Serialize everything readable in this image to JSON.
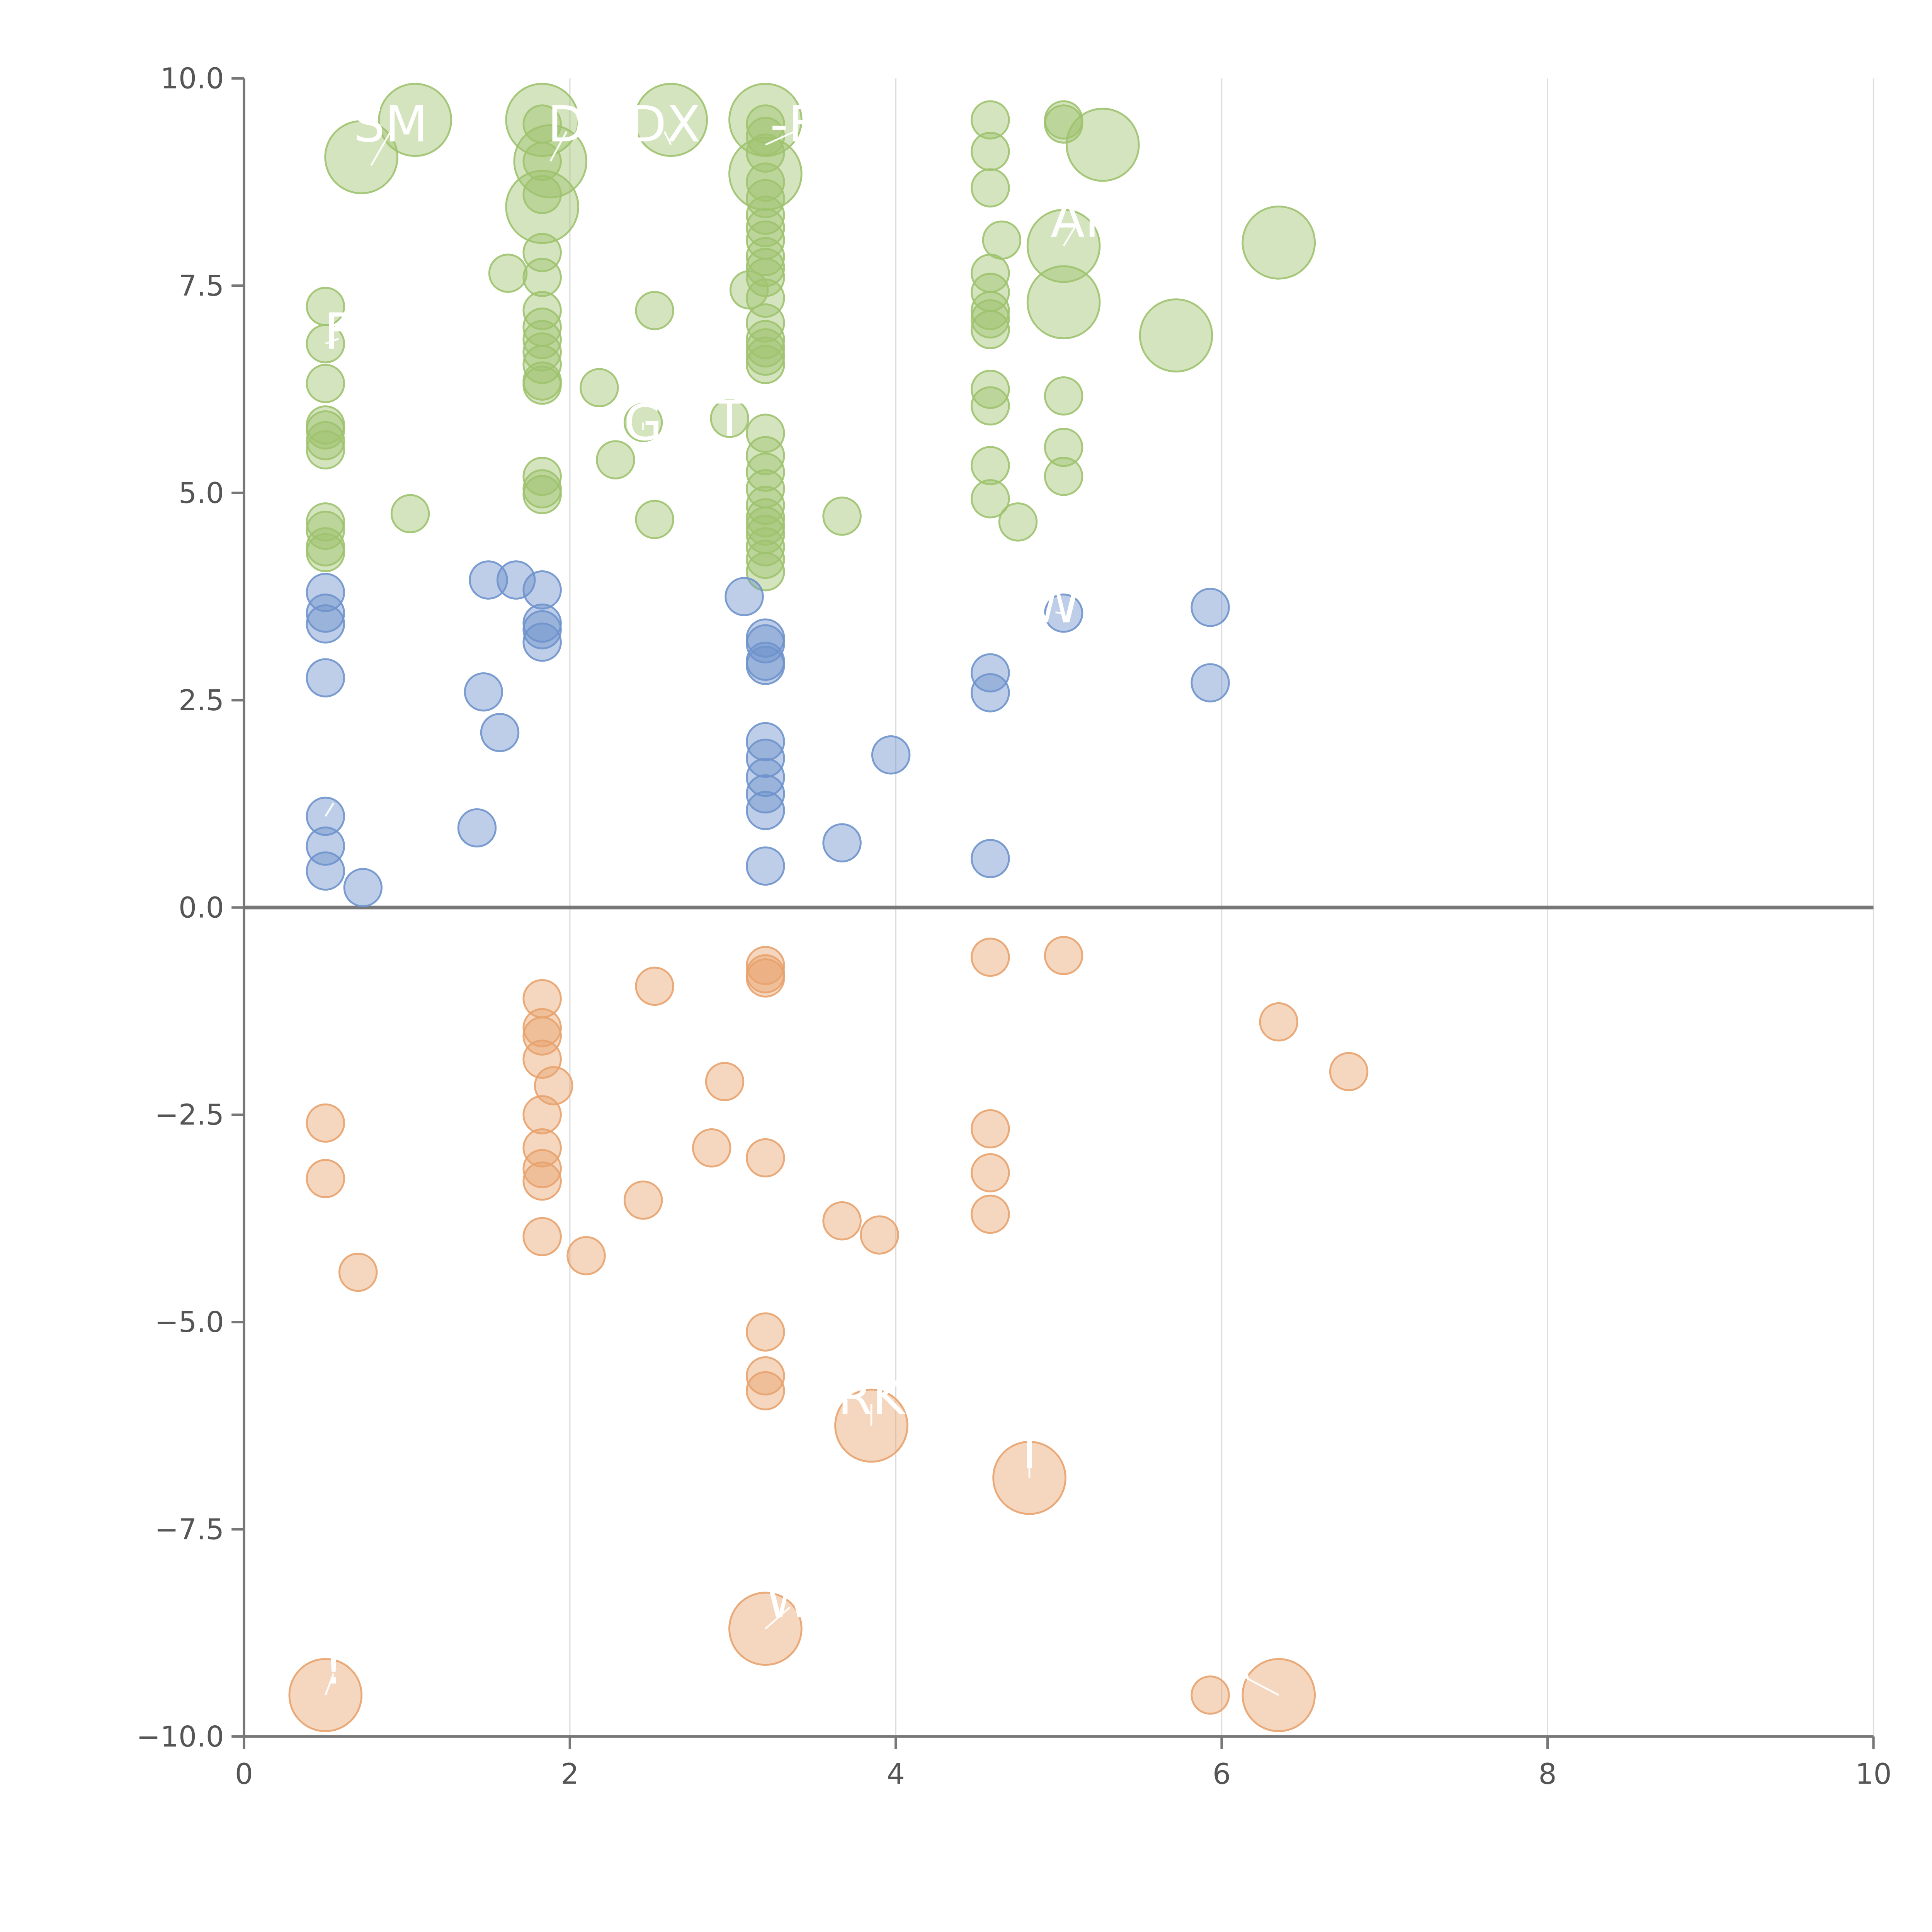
{
  "chart_data": {
    "type": "scatter",
    "title": "",
    "xlabel": "",
    "ylabel": "",
    "xlim": [
      0,
      10
    ],
    "ylim": [
      -10,
      10
    ],
    "grid": {
      "x": true,
      "y": false
    },
    "zero_line": 0,
    "x_ticks": [
      0,
      2,
      4,
      6,
      8,
      10
    ],
    "x_tick_labels": [
      "0",
      "2",
      "4",
      "6",
      "8",
      "10"
    ],
    "y_ticks": [
      10,
      7.5,
      5,
      2.5,
      0,
      -2.5,
      -5,
      -7.5,
      -10
    ],
    "y_tick_labels": [
      "10.0",
      "7.5",
      "5.0",
      "2.5",
      "0.0",
      "−2.5",
      "−5.0",
      "−7.5",
      "−10.0"
    ],
    "colors": {
      "green": "#9fc36f",
      "blue": "#6f93cc",
      "orange": "#e8a36e"
    },
    "series": [
      {
        "color_key": "green",
        "points": [
          [
            0.5,
            7.25
          ],
          [
            0.5,
            6.8
          ],
          [
            0.5,
            6.32
          ],
          [
            0.5,
            5.82
          ],
          [
            0.5,
            5.76
          ],
          [
            0.5,
            5.63
          ],
          [
            0.5,
            5.52
          ],
          [
            0.5,
            4.65
          ],
          [
            0.5,
            4.55
          ],
          [
            0.5,
            4.35
          ],
          [
            0.5,
            4.28
          ],
          [
            1.02,
            4.75
          ],
          [
            1.62,
            7.65
          ],
          [
            1.83,
            9.45
          ],
          [
            1.83,
            9.0
          ],
          [
            1.83,
            8.6
          ],
          [
            1.83,
            7.9
          ],
          [
            1.83,
            7.6
          ],
          [
            1.83,
            7.2
          ],
          [
            1.83,
            7.0
          ],
          [
            1.83,
            6.85
          ],
          [
            1.83,
            6.7
          ],
          [
            1.83,
            6.55
          ],
          [
            1.83,
            6.35
          ],
          [
            1.83,
            6.3
          ],
          [
            1.83,
            5.2
          ],
          [
            1.83,
            5.05
          ],
          [
            1.83,
            4.98
          ],
          [
            2.18,
            6.27
          ],
          [
            2.28,
            5.4
          ],
          [
            2.52,
            7.2
          ],
          [
            2.52,
            4.68
          ],
          [
            2.45,
            5.85
          ],
          [
            2.98,
            5.9
          ],
          [
            3.1,
            7.45
          ],
          [
            3.2,
            9.45
          ],
          [
            3.2,
            9.3
          ],
          [
            3.2,
            9.1
          ],
          [
            3.2,
            8.75
          ],
          [
            3.2,
            8.55
          ],
          [
            3.2,
            8.35
          ],
          [
            3.2,
            8.2
          ],
          [
            3.2,
            8.05
          ],
          [
            3.2,
            7.85
          ],
          [
            3.2,
            7.72
          ],
          [
            3.2,
            7.6
          ],
          [
            3.2,
            7.35
          ],
          [
            3.2,
            7.05
          ],
          [
            3.2,
            6.85
          ],
          [
            3.2,
            6.75
          ],
          [
            3.2,
            6.65
          ],
          [
            3.2,
            6.55
          ],
          [
            3.2,
            5.72
          ],
          [
            3.2,
            5.45
          ],
          [
            3.2,
            5.25
          ],
          [
            3.2,
            5.05
          ],
          [
            3.2,
            4.85
          ],
          [
            3.2,
            4.7
          ],
          [
            3.2,
            4.6
          ],
          [
            3.2,
            4.5
          ],
          [
            3.2,
            4.35
          ],
          [
            3.2,
            4.2
          ],
          [
            3.2,
            4.05
          ],
          [
            3.67,
            4.72
          ],
          [
            4.58,
            9.5
          ],
          [
            4.58,
            9.12
          ],
          [
            4.58,
            8.68
          ],
          [
            4.58,
            7.65
          ],
          [
            4.58,
            7.42
          ],
          [
            4.58,
            7.2
          ],
          [
            4.58,
            7.1
          ],
          [
            4.58,
            6.97
          ],
          [
            4.58,
            6.25
          ],
          [
            4.58,
            6.05
          ],
          [
            4.58,
            5.33
          ],
          [
            4.58,
            4.93
          ],
          [
            4.65,
            8.05
          ],
          [
            4.75,
            4.65
          ],
          [
            5.03,
            9.5
          ],
          [
            5.03,
            9.45
          ],
          [
            5.03,
            6.17
          ],
          [
            5.03,
            5.55
          ],
          [
            5.03,
            5.2
          ]
        ]
      },
      {
        "color_key": "green",
        "size": "large",
        "points": [
          [
            0.72,
            9.05
          ],
          [
            1.05,
            9.5
          ],
          [
            1.83,
            9.5
          ],
          [
            1.88,
            9.0
          ],
          [
            1.83,
            8.45
          ],
          [
            2.62,
            9.5
          ],
          [
            3.2,
            9.5
          ],
          [
            3.2,
            8.85
          ],
          [
            5.27,
            9.2
          ],
          [
            5.03,
            7.98
          ],
          [
            5.03,
            7.3
          ],
          [
            5.72,
            6.9
          ],
          [
            6.35,
            8.02
          ]
        ]
      },
      {
        "color_key": "blue",
        "points": [
          [
            0.5,
            3.8
          ],
          [
            0.5,
            3.55
          ],
          [
            0.5,
            3.42
          ],
          [
            0.5,
            2.77
          ],
          [
            0.5,
            1.1
          ],
          [
            0.5,
            0.74
          ],
          [
            0.5,
            0.44
          ],
          [
            0.73,
            0.24
          ],
          [
            1.43,
            0.96
          ],
          [
            1.47,
            2.6
          ],
          [
            1.5,
            3.95
          ],
          [
            1.57,
            2.11
          ],
          [
            1.67,
            3.95
          ],
          [
            1.83,
            3.83
          ],
          [
            1.83,
            3.43
          ],
          [
            1.83,
            3.35
          ],
          [
            1.83,
            3.2
          ],
          [
            3.07,
            3.75
          ],
          [
            3.2,
            3.25
          ],
          [
            3.2,
            3.18
          ],
          [
            3.2,
            2.97
          ],
          [
            3.2,
            2.92
          ],
          [
            3.2,
            2.0
          ],
          [
            3.2,
            1.8
          ],
          [
            3.2,
            1.57
          ],
          [
            3.2,
            1.37
          ],
          [
            3.2,
            1.17
          ],
          [
            3.2,
            0.5
          ],
          [
            3.67,
            0.78
          ],
          [
            3.97,
            1.84
          ],
          [
            4.58,
            2.83
          ],
          [
            4.58,
            2.59
          ],
          [
            4.58,
            0.59
          ],
          [
            5.03,
            3.55
          ],
          [
            5.93,
            3.62
          ],
          [
            5.93,
            2.71
          ]
        ]
      },
      {
        "color_key": "orange",
        "points": [
          [
            0.5,
            -2.6
          ],
          [
            0.5,
            -3.27
          ],
          [
            0.7,
            -4.4
          ],
          [
            1.83,
            -1.1
          ],
          [
            1.83,
            -1.45
          ],
          [
            1.83,
            -1.55
          ],
          [
            1.83,
            -1.83
          ],
          [
            1.9,
            -2.15
          ],
          [
            1.83,
            -2.5
          ],
          [
            1.83,
            -2.9
          ],
          [
            1.83,
            -3.15
          ],
          [
            1.83,
            -3.3
          ],
          [
            1.83,
            -3.97
          ],
          [
            2.1,
            -4.2
          ],
          [
            2.45,
            -3.53
          ],
          [
            2.52,
            -0.95
          ],
          [
            2.87,
            -2.9
          ],
          [
            2.95,
            -2.1
          ],
          [
            3.2,
            -0.7
          ],
          [
            3.2,
            -0.8
          ],
          [
            3.2,
            -0.85
          ],
          [
            3.2,
            -3.02
          ],
          [
            3.2,
            -5.12
          ],
          [
            3.2,
            -5.65
          ],
          [
            3.2,
            -5.83
          ],
          [
            3.67,
            -3.78
          ],
          [
            3.9,
            -3.95
          ],
          [
            4.58,
            -0.6
          ],
          [
            4.58,
            -2.67
          ],
          [
            4.58,
            -3.2
          ],
          [
            4.58,
            -3.7
          ],
          [
            5.03,
            -0.58
          ],
          [
            5.93,
            -9.5
          ],
          [
            6.35,
            -1.38
          ],
          [
            6.78,
            -1.98
          ]
        ]
      },
      {
        "color_key": "orange",
        "size": "large",
        "points": [
          [
            3.85,
            -6.25
          ],
          [
            4.82,
            -6.88
          ],
          [
            3.2,
            -8.7
          ],
          [
            0.5,
            -9.5
          ],
          [
            6.35,
            -9.5
          ]
        ]
      }
    ],
    "annotations": [
      {
        "text": "SM",
        "x": 0.9,
        "y": 9.45,
        "anchor_x": 0.78,
        "anchor_y": 8.95
      },
      {
        "text": "D",
        "x": 1.98,
        "y": 9.45,
        "anchor_x": 1.88,
        "anchor_y": 9.0
      },
      {
        "text": "DX",
        "x": 2.58,
        "y": 9.45,
        "anchor_x": 2.62,
        "anchor_y": 9.2
      },
      {
        "text": "-E",
        "x": 3.38,
        "y": 9.45,
        "anchor_x": 3.2,
        "anchor_y": 9.2
      },
      {
        "text": "F",
        "x": 0.58,
        "y": 6.95,
        "anchor_x": 0.5,
        "anchor_y": 6.8
      },
      {
        "text": "G",
        "x": 2.45,
        "y": 5.85,
        "anchor_x": 2.45,
        "anchor_y": 5.85
      },
      {
        "text": "T",
        "x": 2.98,
        "y": 5.9,
        "anchor_x": 2.98,
        "anchor_y": 5.9
      },
      {
        "text": "AI",
        "x": 5.1,
        "y": 8.3,
        "anchor_x": 5.03,
        "anchor_y": 7.98
      },
      {
        "text": "W",
        "x": 4.98,
        "y": 3.65,
        "anchor_x": 5.03,
        "anchor_y": 3.55
      },
      {
        "text": "’",
        "x": 0.55,
        "y": 1.35,
        "anchor_x": 0.5,
        "anchor_y": 1.1
      },
      {
        "text": "RK",
        "x": 3.85,
        "y": -5.9,
        "anchor_x": 3.85,
        "anchor_y": -6.25
      },
      {
        "text": "T",
        "x": 4.82,
        "y": -6.55,
        "anchor_x": 4.82,
        "anchor_y": -6.88
      },
      {
        "text": "W",
        "x": 3.35,
        "y": -8.35,
        "anchor_x": 3.2,
        "anchor_y": -8.7
      },
      {
        "text": "!",
        "x": 0.55,
        "y": -9.15,
        "anchor_x": 0.5,
        "anchor_y": -9.5
      },
      {
        "text": "«",
        "x": 6.1,
        "y": -9.15,
        "anchor_x": 6.35,
        "anchor_y": -9.5
      }
    ]
  }
}
